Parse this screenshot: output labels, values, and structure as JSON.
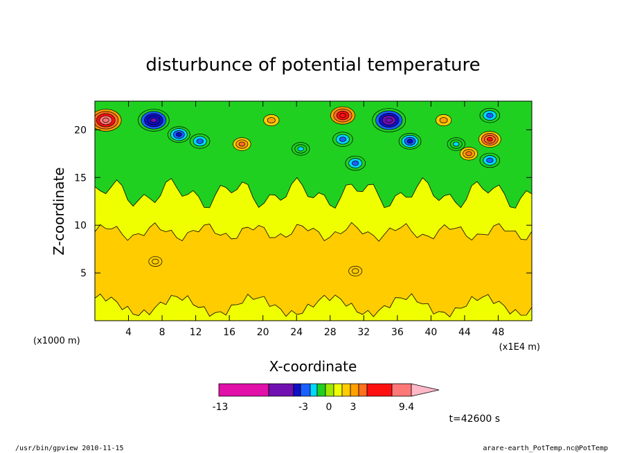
{
  "chart_data": {
    "type": "heatmap",
    "title": "disturbunce of potential temperature",
    "xlabel": "X-coordinate",
    "ylabel": "Z-coordinate",
    "x_unit": "(x1000 m)",
    "y_unit": "(x1E4 m)",
    "xlim": [
      0,
      52
    ],
    "ylim": [
      0,
      23
    ],
    "x_ticks": [
      "4",
      "8",
      "12",
      "16",
      "20",
      "24",
      "28",
      "32",
      "36",
      "40",
      "44",
      "48"
    ],
    "y_ticks": [
      "5",
      "10",
      "15",
      "20"
    ],
    "colorbar": {
      "labels": [
        "-13",
        "-3",
        "0",
        "3",
        "9.4"
      ],
      "bins": [
        {
          "color": "#e010a8"
        },
        {
          "color": "#7010b0"
        },
        {
          "color": "#1010c8"
        },
        {
          "color": "#1a60ff"
        },
        {
          "color": "#00d8ff"
        },
        {
          "color": "#20d020"
        },
        {
          "color": "#a0e800"
        },
        {
          "color": "#f0ff00"
        },
        {
          "color": "#ffcc00"
        },
        {
          "color": "#ffa000"
        },
        {
          "color": "#ff7020"
        },
        {
          "color": "#ff1010"
        },
        {
          "color": "#ff7878"
        },
        {
          "color": "#ffb8c8"
        }
      ]
    },
    "time_label": "t=42600 s",
    "layers": [
      {
        "name": "base",
        "color": "#f0ff00"
      },
      {
        "name": "lower-warm",
        "color": "#ffcc00"
      },
      {
        "name": "upper-turbulent",
        "color": "#20d020"
      }
    ],
    "blobs": [
      {
        "x": 1.3,
        "z": 21.0,
        "value": 9
      },
      {
        "x": 7.0,
        "z": 21.0,
        "value": -9
      },
      {
        "x": 10.0,
        "z": 19.5,
        "value": -5
      },
      {
        "x": 12.5,
        "z": 18.8,
        "value": -4
      },
      {
        "x": 17.5,
        "z": 18.5,
        "value": 3
      },
      {
        "x": 21.0,
        "z": 21.0,
        "value": 2
      },
      {
        "x": 24.5,
        "z": 18.0,
        "value": -3
      },
      {
        "x": 29.5,
        "z": 21.5,
        "value": 6
      },
      {
        "x": 29.5,
        "z": 19.0,
        "value": -4
      },
      {
        "x": 31.0,
        "z": 16.5,
        "value": -4
      },
      {
        "x": 35.0,
        "z": 21.0,
        "value": -10
      },
      {
        "x": 37.5,
        "z": 18.8,
        "value": -5
      },
      {
        "x": 41.5,
        "z": 21.0,
        "value": 2
      },
      {
        "x": 43.0,
        "z": 18.5,
        "value": -3
      },
      {
        "x": 44.5,
        "z": 17.5,
        "value": 3
      },
      {
        "x": 47.0,
        "z": 21.5,
        "value": -4
      },
      {
        "x": 47.0,
        "z": 19.0,
        "value": 5
      },
      {
        "x": 47.0,
        "z": 16.8,
        "value": -4
      },
      {
        "x": 7.2,
        "z": 6.2,
        "value": 1
      },
      {
        "x": 31.0,
        "z": 5.2,
        "value": 1
      }
    ]
  },
  "footer": {
    "left": "/usr/bin/gpview  2010-11-15",
    "right": "arare-earth_PotTemp.nc@PotTemp"
  }
}
